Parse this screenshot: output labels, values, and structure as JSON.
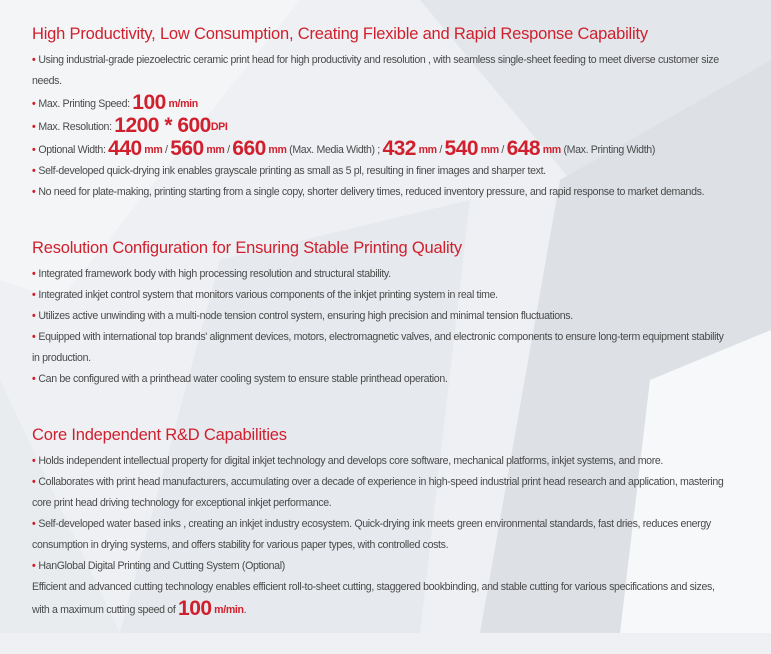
{
  "colors": {
    "accent": "#d0202e",
    "text": "#4a4a4a",
    "background": "#eef0f3"
  },
  "sections": [
    {
      "title": "High Productivity, Low Consumption, Creating Flexible and Rapid Response Capability",
      "bullets": [
        "Using industrial-grade piezoelectric ceramic print head for high productivity and  resolution , with seamless single-sheet feeding to meet diverse customer size needs."
      ],
      "speed": {
        "label": "Max. Printing Speed:",
        "value": "100",
        "unit": "m/min"
      },
      "resolution": {
        "label": "Max. Resolution:",
        "value": "1200 * 600",
        "unit": "DPI"
      },
      "width": {
        "label": "Optional Width:",
        "media": [
          "440",
          "560",
          "660"
        ],
        "media_note": "(Max. Media Width) ;",
        "print": [
          "432",
          "540",
          "648"
        ],
        "print_note": "(Max. Printing Width)",
        "unit": "mm",
        "sep": "/"
      },
      "bullets_after": [
        "Self-developed quick-drying ink enables grayscale printing as small as 5 pl, resulting in finer images and sharper text.",
        "No need for plate-making, printing starting from a single copy, shorter delivery times, reduced inventory pressure, and rapid response to market demands."
      ]
    },
    {
      "title": "Resolution Configuration for Ensuring Stable Printing Quality",
      "bullets": [
        "Integrated framework body with high processing resolution and structural stability.",
        "Integrated inkjet control system that monitors various components of the inkjet printing system in real time.",
        "Utilizes active unwinding with a multi-node tension control system, ensuring high precision and minimal tension fluctuations.",
        "Equipped with international top brands' alignment devices, motors, electromagnetic valves, and electronic components to ensure long-term equipment stability in production.",
        "Can be configured with a printhead water cooling system to ensure stable printhead operation."
      ]
    },
    {
      "title": "Core Independent R&D Capabilities",
      "bullets": [
        "Holds independent intellectual property for digital inkjet technology and develops core software, mechanical platforms, inkjet systems, and more.",
        "Collaborates with print head manufacturers, accumulating over a decade of experience in high-speed industrial print head research and application, mastering core print head driving technology for exceptional inkjet performance.",
        "Self-developed water based inks , creating an inkjet industry ecosystem. Quick-drying ink meets green environmental standards, fast dries, reduces energy consumption in drying systems, and offers stability for various paper types, with controlled costs.",
        "HanGlobal Digital Printing and Cutting System (Optional)"
      ],
      "closing": "Efficient and advanced cutting technology enables efficient roll-to-sheet cutting, staggered bookbinding, and stable cutting for various specifications and sizes, with a maximum cutting speed of",
      "closing_value": "100",
      "closing_unit": "m/min",
      "closing_end": "."
    }
  ],
  "bullet_char": "•"
}
